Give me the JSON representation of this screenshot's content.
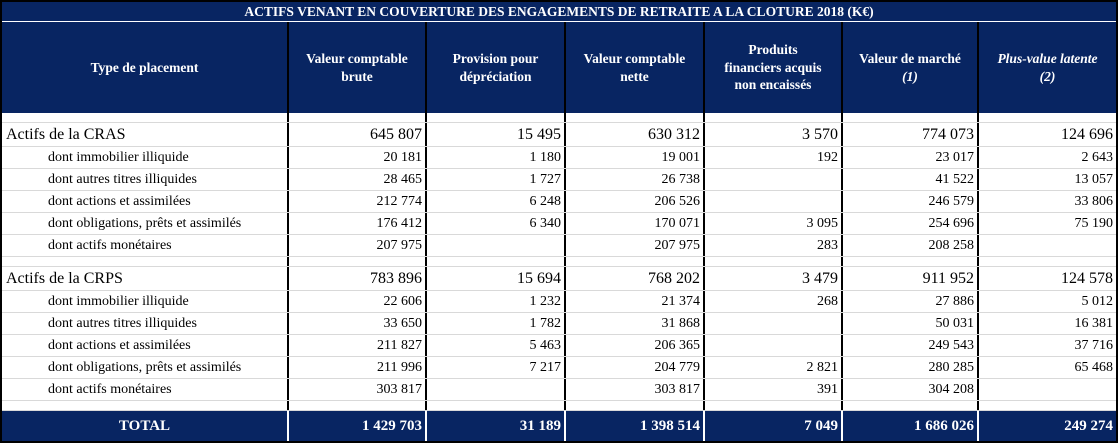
{
  "title": "ACTIFS VENANT EN COUVERTURE DES ENGAGEMENTS DE RETRAITE A LA CLOTURE 2018 (K€)",
  "colors": {
    "navy": "#082562",
    "grid_line": "#000000",
    "row_separator": "#d9d9d9",
    "header_text": "#ffffff",
    "body_text": "#000000"
  },
  "table": {
    "columns": [
      {
        "header_lines": [
          "Type de placement"
        ],
        "note": "",
        "italic": false
      },
      {
        "header_lines": [
          "Valeur comptable",
          "brute"
        ],
        "note": "",
        "italic": false
      },
      {
        "header_lines": [
          "Provision pour",
          "dépréciation"
        ],
        "note": "",
        "italic": false
      },
      {
        "header_lines": [
          "Valeur comptable",
          "nette"
        ],
        "note": "",
        "italic": false
      },
      {
        "header_lines": [
          "Produits",
          "financiers acquis",
          "non encaissés"
        ],
        "note": "",
        "italic": false
      },
      {
        "header_lines": [
          "Valeur de marché"
        ],
        "note": "(1)",
        "italic": false
      },
      {
        "header_lines": [
          "Plus-value latente"
        ],
        "note": "(2)",
        "italic": true
      }
    ],
    "rows": [
      {
        "type": "spacer",
        "label": "",
        "values": [
          "",
          "",
          "",
          "",
          "",
          ""
        ]
      },
      {
        "type": "section",
        "label": "Actifs de la CRAS",
        "values": [
          "645 807",
          "15 495",
          "630 312",
          "3 570",
          "774 073",
          "124 696"
        ]
      },
      {
        "type": "sub",
        "label": "dont immobilier illiquide",
        "values": [
          "20 181",
          "1 180",
          "19 001",
          "192",
          "23 017",
          "2 643"
        ]
      },
      {
        "type": "sub",
        "label": "dont autres titres illiquides",
        "values": [
          "28 465",
          "1 727",
          "26 738",
          "",
          "41 522",
          "13 057"
        ]
      },
      {
        "type": "sub",
        "label": "dont actions et assimilées",
        "values": [
          "212 774",
          "6 248",
          "206 526",
          "",
          "246 579",
          "33 806"
        ]
      },
      {
        "type": "sub",
        "label": "dont obligations, prêts et assimilés",
        "values": [
          "176 412",
          "6 340",
          "170 071",
          "3 095",
          "254 696",
          "75 190"
        ]
      },
      {
        "type": "sub",
        "label": "dont actifs monétaires",
        "values": [
          "207 975",
          "",
          "207 975",
          "283",
          "208 258",
          ""
        ]
      },
      {
        "type": "spacer",
        "label": "",
        "values": [
          "",
          "",
          "",
          "",
          "",
          ""
        ]
      },
      {
        "type": "section",
        "label": "Actifs de la CRPS",
        "values": [
          "783 896",
          "15 694",
          "768 202",
          "3 479",
          "911 952",
          "124 578"
        ]
      },
      {
        "type": "sub",
        "label": "dont immobilier illiquide",
        "values": [
          "22 606",
          "1 232",
          "21 374",
          "268",
          "27 886",
          "5 012"
        ]
      },
      {
        "type": "sub",
        "label": "dont autres titres illiquides",
        "values": [
          "33 650",
          "1 782",
          "31 868",
          "",
          "50 031",
          "16 381"
        ]
      },
      {
        "type": "sub",
        "label": "dont actions et assimilées",
        "values": [
          "211 827",
          "5 463",
          "206 365",
          "",
          "249 543",
          "37 716"
        ]
      },
      {
        "type": "sub",
        "label": "dont obligations, prêts et assimilés",
        "values": [
          "211 996",
          "7 217",
          "204 779",
          "2 821",
          "280 285",
          "65 468"
        ]
      },
      {
        "type": "sub",
        "label": "dont actifs monétaires",
        "values": [
          "303 817",
          "",
          "303 817",
          "391",
          "304 208",
          ""
        ]
      },
      {
        "type": "spacer",
        "label": "",
        "values": [
          "",
          "",
          "",
          "",
          "",
          ""
        ]
      },
      {
        "type": "total",
        "label": "TOTAL",
        "values": [
          "1 429 703",
          "31 189",
          "1 398 514",
          "7 049",
          "1 686 026",
          "249 274"
        ]
      }
    ]
  }
}
